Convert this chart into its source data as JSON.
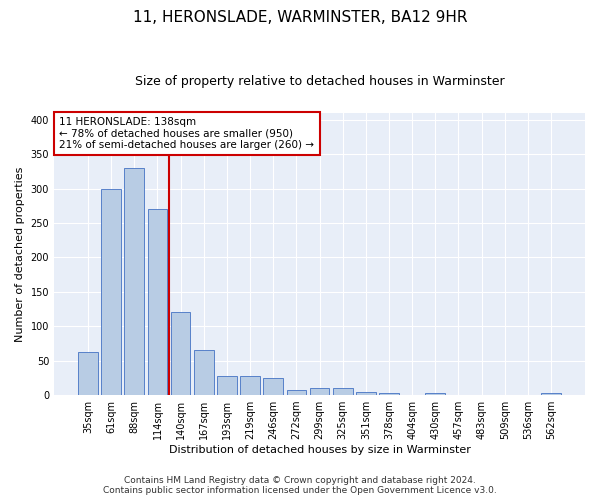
{
  "title": "11, HERONSLADE, WARMINSTER, BA12 9HR",
  "subtitle": "Size of property relative to detached houses in Warminster",
  "xlabel": "Distribution of detached houses by size in Warminster",
  "ylabel": "Number of detached properties",
  "categories": [
    "35sqm",
    "61sqm",
    "88sqm",
    "114sqm",
    "140sqm",
    "167sqm",
    "193sqm",
    "219sqm",
    "246sqm",
    "272sqm",
    "299sqm",
    "325sqm",
    "351sqm",
    "378sqm",
    "404sqm",
    "430sqm",
    "457sqm",
    "483sqm",
    "509sqm",
    "536sqm",
    "562sqm"
  ],
  "values": [
    62,
    300,
    330,
    270,
    120,
    65,
    28,
    28,
    25,
    8,
    11,
    11,
    5,
    3,
    0,
    3,
    0,
    0,
    0,
    0,
    3
  ],
  "bar_color": "#b8cce4",
  "bar_edgecolor": "#4472c4",
  "vline_color": "#cc0000",
  "vline_pos": 3.5,
  "annotation_title": "11 HERONSLADE: 138sqm",
  "annotation_line1": "← 78% of detached houses are smaller (950)",
  "annotation_line2": "21% of semi-detached houses are larger (260) →",
  "annotation_box_color": "#cc0000",
  "ylim": [
    0,
    410
  ],
  "yticks": [
    0,
    50,
    100,
    150,
    200,
    250,
    300,
    350,
    400
  ],
  "footer1": "Contains HM Land Registry data © Crown copyright and database right 2024.",
  "footer2": "Contains public sector information licensed under the Open Government Licence v3.0.",
  "plot_bgcolor": "#e8eef8",
  "fig_bgcolor": "#ffffff",
  "grid_color": "#ffffff",
  "title_fontsize": 11,
  "subtitle_fontsize": 9,
  "axis_label_fontsize": 8,
  "tick_fontsize": 7,
  "annotation_fontsize": 7.5,
  "footer_fontsize": 6.5
}
